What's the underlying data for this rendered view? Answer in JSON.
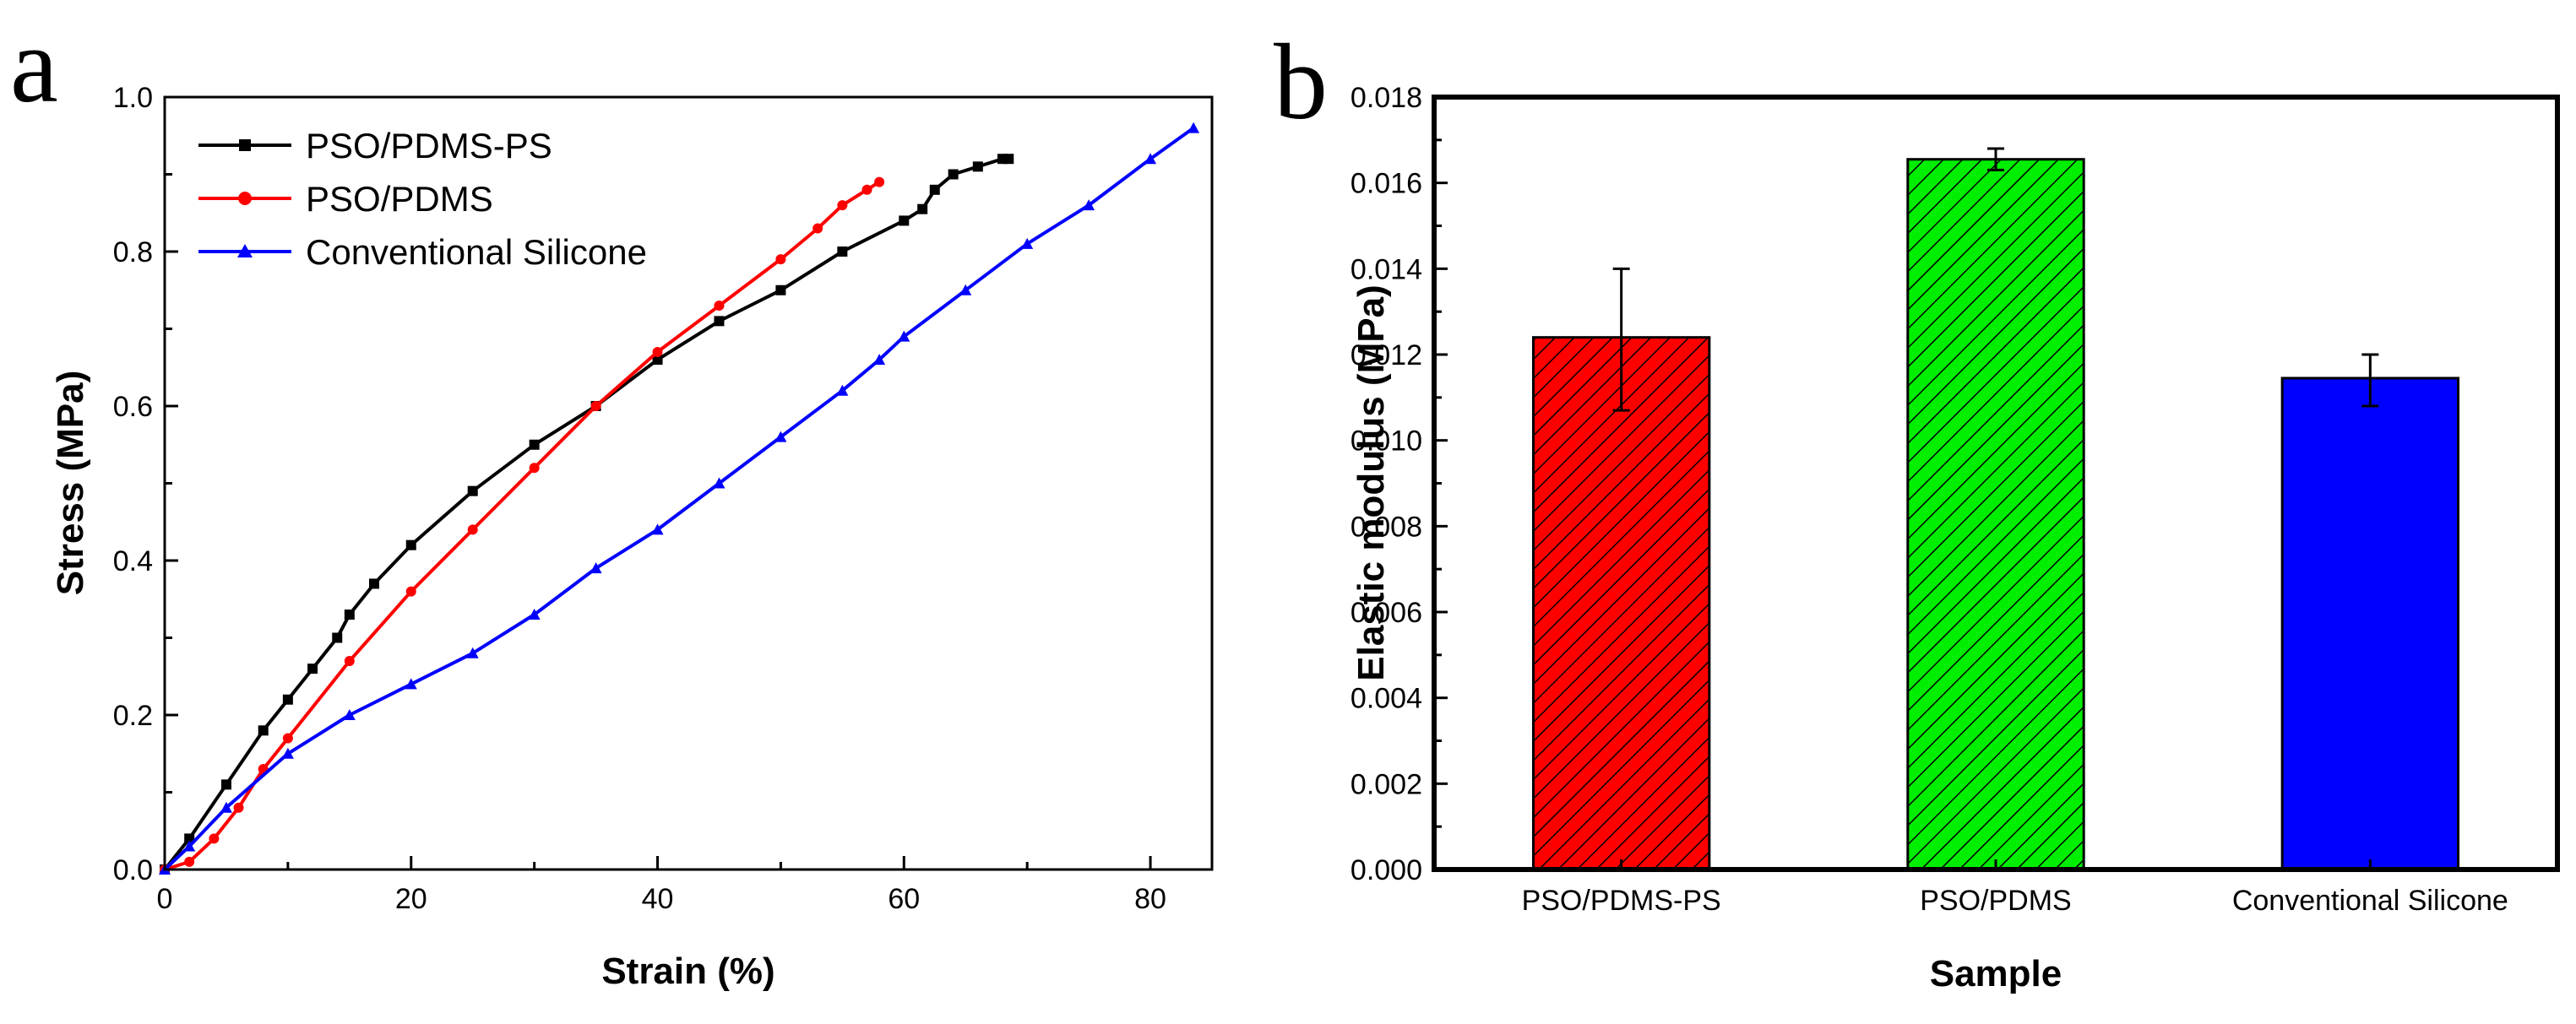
{
  "chart_data": [
    {
      "panel": "a",
      "type": "line",
      "xlabel": "Strain (%)",
      "ylabel": "Stress (MPa)",
      "xlim": [
        0,
        85
      ],
      "ylim": [
        0,
        1.0
      ],
      "xticks": [
        0,
        20,
        40,
        60,
        80
      ],
      "xtick_labels": [
        "0",
        "20",
        "40",
        "60",
        "80"
      ],
      "yticks": [
        0.0,
        0.2,
        0.4,
        0.6,
        0.8,
        1.0
      ],
      "ytick_labels": [
        "0.0",
        "0.2",
        "0.4",
        "0.6",
        "0.8",
        "1.0"
      ],
      "legend_position": "top-left",
      "series": [
        {
          "name": "PSO/PDMS-PS",
          "color": "#000000",
          "marker": "square",
          "x": [
            0,
            2,
            5,
            8,
            10,
            12,
            14,
            15,
            17,
            20,
            25,
            30,
            35,
            40,
            45,
            50,
            55,
            60,
            61.5,
            62.5,
            64,
            66,
            68,
            68.5
          ],
          "y": [
            0,
            0.04,
            0.11,
            0.18,
            0.22,
            0.26,
            0.3,
            0.33,
            0.37,
            0.42,
            0.49,
            0.55,
            0.6,
            0.66,
            0.71,
            0.75,
            0.8,
            0.84,
            0.855,
            0.88,
            0.9,
            0.91,
            0.92,
            0.92
          ]
        },
        {
          "name": "PSO/PDMS",
          "color": "#ff0000",
          "marker": "circle",
          "x": [
            0,
            2,
            4,
            6,
            8,
            10,
            15,
            20,
            25,
            30,
            35,
            40,
            45,
            50,
            53,
            55,
            57,
            58
          ],
          "y": [
            0,
            0.01,
            0.04,
            0.08,
            0.13,
            0.17,
            0.27,
            0.36,
            0.44,
            0.52,
            0.6,
            0.67,
            0.73,
            0.79,
            0.83,
            0.86,
            0.88,
            0.89
          ]
        },
        {
          "name": "Conventional Silicone",
          "color": "#0000ff",
          "marker": "triangle",
          "x": [
            0,
            2,
            5,
            10,
            15,
            20,
            25,
            30,
            35,
            40,
            45,
            50,
            55,
            58,
            60,
            65,
            70,
            75,
            80,
            83.5
          ],
          "y": [
            0,
            0.03,
            0.08,
            0.15,
            0.2,
            0.24,
            0.28,
            0.33,
            0.39,
            0.44,
            0.5,
            0.56,
            0.62,
            0.66,
            0.69,
            0.75,
            0.81,
            0.86,
            0.92,
            0.96
          ]
        }
      ]
    },
    {
      "panel": "b",
      "type": "bar",
      "xlabel": "Sample",
      "ylabel": "Elastic modulus (MPa)",
      "ylim": [
        0,
        0.018
      ],
      "yticks": [
        0.0,
        0.002,
        0.004,
        0.006,
        0.008,
        0.01,
        0.012,
        0.014,
        0.016,
        0.018
      ],
      "ytick_labels": [
        "0.000",
        "0.002",
        "0.004",
        "0.006",
        "0.008",
        "0.010",
        "0.012",
        "0.014",
        "0.016",
        "0.018"
      ],
      "categories": [
        "PSO/PDMS-PS",
        "PSO/PDMS",
        "Conventional Silicone"
      ],
      "values": [
        0.0124,
        0.01655,
        0.01145
      ],
      "error_low": [
        0.0107,
        0.0163,
        0.0108
      ],
      "error_high": [
        0.014,
        0.0168,
        0.012
      ],
      "colors": [
        "#ff0000",
        "#00ee00",
        "#0000ff"
      ]
    }
  ],
  "labels": {
    "panel_a": "a",
    "panel_b": "b"
  }
}
